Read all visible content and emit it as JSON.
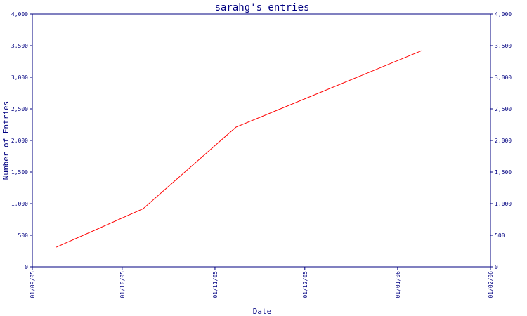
{
  "chart_data": {
    "type": "line",
    "title": "sarahg's entries",
    "xlabel": "Date",
    "ylabel": "Number of Entries",
    "x_ticks": [
      "01/09/05",
      "01/10/05",
      "01/11/05",
      "01/12/05",
      "01/01/06",
      "01/02/06"
    ],
    "xlim": [
      "2005-09-01",
      "2006-02-01"
    ],
    "ylim": [
      0,
      4000
    ],
    "y_ticks_left": [
      "0",
      "500",
      "1,000",
      "1,500",
      "2,000",
      "2,500",
      "3,000",
      "3,500",
      "4,000"
    ],
    "y_ticks_right": [
      "0",
      "500",
      "1,000",
      "1,500",
      "2,000",
      "2,500",
      "3,000",
      "3,500",
      "4,000"
    ],
    "y_tick_values": [
      0,
      500,
      1000,
      1500,
      2000,
      2500,
      3000,
      3500,
      4000
    ],
    "grid": false,
    "series": [
      {
        "color": "#ff0000",
        "points": [
          {
            "x": "2005-09-09",
            "y": 310
          },
          {
            "x": "2005-10-08",
            "y": 920
          },
          {
            "x": "2005-11-08",
            "y": 2210
          },
          {
            "x": "2006-01-09",
            "y": 3420
          }
        ]
      }
    ]
  }
}
